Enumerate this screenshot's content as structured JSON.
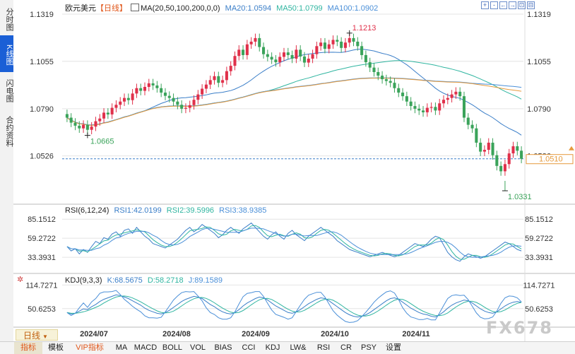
{
  "sidebar": {
    "items": [
      {
        "label": "分时图",
        "active": false
      },
      {
        "label": "K线图",
        "active": true
      },
      {
        "label": "闪电图",
        "active": false
      },
      {
        "label": "合约资料",
        "active": false
      }
    ]
  },
  "header": {
    "symbol": "欧元美元",
    "period": "【日线】",
    "ma_title": "MA(20,50,100,200,0,0)",
    "ma20": "MA20:1.0594",
    "ma50": "MA50:1.0799",
    "ma100": "MA100:1.0902"
  },
  "window_controls": [
    "+",
    "-",
    "←",
    "→",
    "⊡",
    "⊟"
  ],
  "price_panel": {
    "ticks": [
      "1.1319",
      "1.1055",
      "1.0790",
      "1.0526"
    ],
    "current_price": "1.0510",
    "high_label": "1.1213",
    "low_label_left": "1.0665",
    "low_label_right": "1.0331"
  },
  "rsi_panel": {
    "title": "RSI(6,12,24)",
    "rsi1": "RSI1:42.0199",
    "rsi2": "RSI2:39.5996",
    "rsi3": "RSI3:38.9385",
    "ticks": [
      "85.1512",
      "59.2722",
      "33.3931"
    ]
  },
  "kdj_panel": {
    "title": "KDJ(9,3,3)",
    "k": "K:68.5675",
    "d": "D:58.2718",
    "j": "J:89.1589",
    "ticks": [
      "114.7271",
      "50.6253"
    ]
  },
  "x_axis": [
    "2024/07",
    "2024/08",
    "2024/09",
    "2024/10",
    "2024/11"
  ],
  "period_selector": "日线",
  "bottom_bar": [
    "指标",
    "模板",
    "VIP指标",
    "MA",
    "MACD",
    "BOLL",
    "VOL",
    "BIAS",
    "CCI",
    "KDJ",
    "LW&",
    "RSI",
    "CR",
    "PSY",
    "设置"
  ],
  "watermark": "FX678",
  "colors": {
    "up": "#e0304a",
    "down": "#3aa35a",
    "ma20": "#3a7ec8",
    "ma50": "#2fb5a0",
    "ma100": "#4a8fd8",
    "ma200": "#e69a3c",
    "accent": "#1a5fd6",
    "current_price": "#e69a3c"
  },
  "chart_data": {
    "type": "candlestick",
    "y_range": [
      1.0331,
      1.1319
    ],
    "key_levels": {
      "high": 1.1213,
      "low": 1.0331,
      "swing_low": 1.0665,
      "last": 1.051
    },
    "closes": [
      1.074,
      1.0712,
      1.0695,
      1.068,
      1.07,
      1.0672,
      1.069,
      1.072,
      1.0735,
      1.0768,
      1.0758,
      1.0795,
      1.0812,
      1.083,
      1.085,
      1.0838,
      1.0875,
      1.0905,
      1.089,
      1.0912,
      1.0932,
      1.092,
      1.0905,
      1.088,
      1.0862,
      1.085,
      1.083,
      1.0812,
      1.079,
      1.0795,
      1.081,
      1.084,
      1.087,
      1.0902,
      1.0925,
      1.095,
      1.0972,
      1.0935,
      1.095,
      1.1,
      1.103,
      1.1085,
      1.112,
      1.109,
      1.115,
      1.1165,
      1.1185,
      1.1135,
      1.1095,
      1.108,
      1.1065,
      1.105,
      1.108,
      1.1105,
      1.109,
      1.107,
      1.112,
      1.1082,
      1.1048,
      1.107,
      1.1095,
      1.114,
      1.116,
      1.1125,
      1.115,
      1.1175,
      1.1165,
      1.113,
      1.116,
      1.1185,
      1.1165,
      1.114,
      1.109,
      1.105,
      1.102,
      1.0995,
      1.0975,
      1.0955,
      1.0945,
      1.0935,
      1.0905,
      1.088,
      1.086,
      1.083,
      1.0805,
      1.079,
      1.078,
      1.077,
      1.0795,
      1.08,
      1.078,
      1.082,
      1.084,
      1.085,
      1.087,
      1.0885,
      1.086,
      1.074,
      1.07,
      1.068,
      1.06,
      1.055,
      1.056,
      1.06,
      1.053,
      1.047,
      1.044,
      1.048,
      1.054,
      1.058,
      1.0555,
      1.051
    ],
    "rsi1": [
      48,
      42,
      45,
      38,
      44,
      40,
      48,
      55,
      52,
      60,
      58,
      65,
      68,
      62,
      70,
      72,
      66,
      74,
      68,
      62,
      58,
      52,
      50,
      48,
      46,
      50,
      54,
      58,
      64,
      70,
      74,
      68,
      72,
      78,
      74,
      70,
      66,
      60,
      64,
      70,
      74,
      70,
      66,
      72,
      76,
      80,
      74,
      68,
      62,
      58,
      64,
      68,
      62,
      58,
      66,
      70,
      64,
      60,
      56,
      62,
      66,
      70,
      74,
      70,
      66,
      62,
      56,
      52,
      48,
      44,
      42,
      40,
      38,
      36,
      34,
      36,
      38,
      40,
      38,
      36,
      34,
      36,
      40,
      44,
      48,
      52,
      50,
      48,
      52,
      58,
      62,
      60,
      50,
      40,
      34,
      30,
      28,
      34,
      38,
      36,
      34,
      32,
      34,
      38,
      42,
      46,
      50,
      54,
      52,
      48,
      44,
      42
    ],
    "kdj_k": [
      40,
      36,
      38,
      44,
      50,
      48,
      56,
      62,
      70,
      76,
      80,
      84,
      88,
      86,
      82,
      78,
      72,
      66,
      60,
      52,
      46,
      42,
      38,
      36,
      40,
      46,
      54,
      62,
      70,
      76,
      80,
      84,
      82,
      78,
      70,
      62,
      56,
      48,
      42,
      38,
      36,
      40,
      48,
      58,
      66,
      72,
      78,
      82,
      80,
      74,
      66,
      58,
      52,
      46,
      40,
      38,
      42,
      48,
      56,
      64,
      70,
      76,
      80,
      78,
      72,
      64,
      56,
      48,
      40,
      34,
      30,
      28,
      30,
      34,
      40,
      48,
      56,
      64,
      72,
      78,
      80,
      76,
      68,
      60,
      52,
      46,
      40,
      36,
      34,
      30,
      28,
      34,
      42,
      52,
      60,
      66,
      70,
      74,
      72,
      66,
      58,
      50,
      44,
      40,
      38,
      42,
      50,
      58,
      64,
      68,
      70,
      68
    ]
  }
}
